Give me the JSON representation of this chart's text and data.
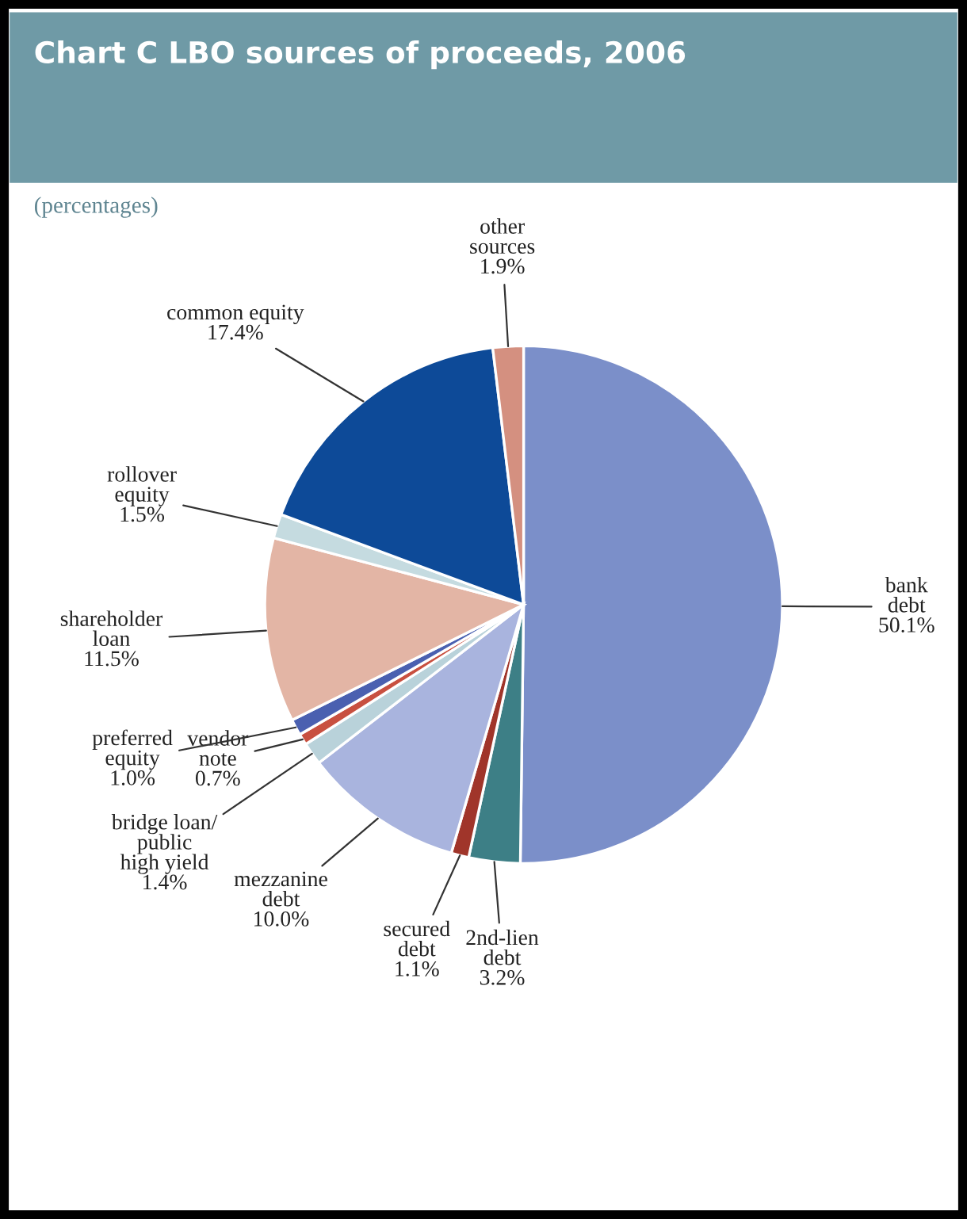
{
  "chart_data": {
    "type": "pie",
    "title": "Chart C LBO sources of proceeds, 2006",
    "subtitle": "(percentages)",
    "categories": [
      "bank\ndebt",
      "2nd-lien\ndebt",
      "secured\ndebt",
      "mezzanine\ndebt",
      "bridge loan/\npublic\nhigh yield",
      "vendor\nnote",
      "preferred\nequity",
      "shareholder\nloan",
      "rollover\nequity",
      "common equity",
      "other\nsources"
    ],
    "values": [
      50.1,
      3.2,
      1.1,
      10.0,
      1.4,
      0.7,
      1.0,
      11.5,
      1.5,
      17.4,
      1.9
    ],
    "colors": [
      "#7b8fc9",
      "#3d7f86",
      "#a0352a",
      "#a9b4de",
      "#b9d2da",
      "#c85040",
      "#4a60b0",
      "#e3b5a5",
      "#c5dbe0",
      "#0d4a98",
      "#d49080"
    ],
    "value_labels": [
      "50.1%",
      "3.2%",
      "1.1%",
      "10.0%",
      "1.4%",
      "0.7%",
      "1.0%",
      "11.5%",
      "1.5%",
      "17.4%",
      "1.9%"
    ]
  }
}
